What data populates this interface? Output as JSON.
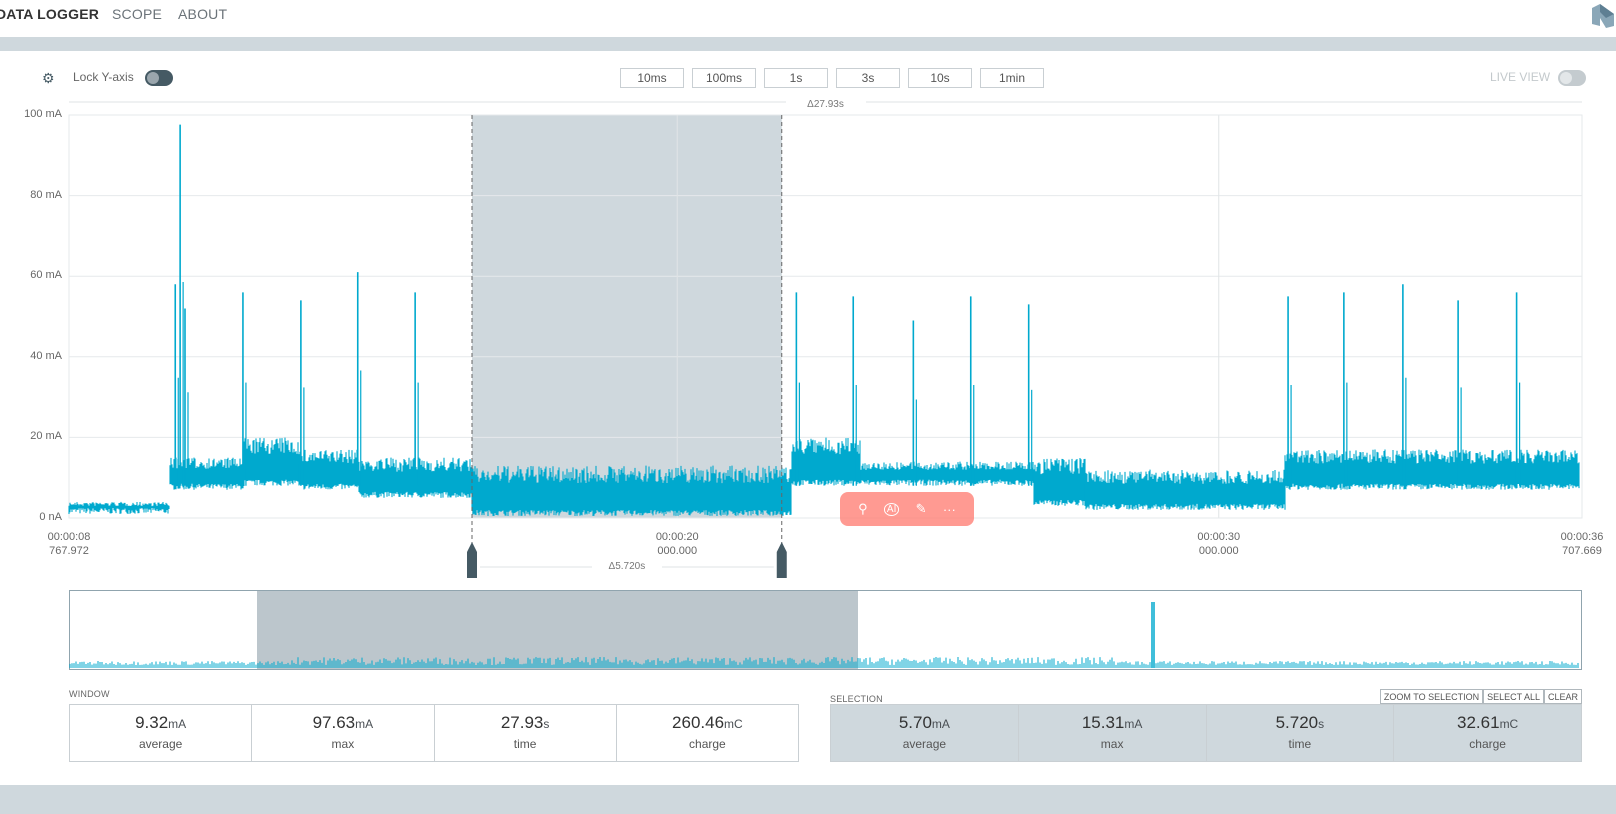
{
  "nav": {
    "items": [
      {
        "label": "DATA LOGGER",
        "active": true
      },
      {
        "label": "SCOPE"
      },
      {
        "label": "ABOUT"
      }
    ]
  },
  "controls": {
    "lock_y_label": "Lock Y-axis",
    "lock_y_on": false,
    "live_view_label": "LIVE VIEW",
    "live_view_on": false,
    "window_buttons": [
      "10ms",
      "100ms",
      "1s",
      "3s",
      "10s",
      "1min"
    ],
    "window_delta": "Δ27.93s",
    "selection_delta": "Δ5.720s"
  },
  "floating_toolbar": {
    "icons": [
      "search-icon",
      "ai-icon",
      "magic-pen-icon",
      "more-icon"
    ],
    "color": "#ff786e"
  },
  "chart_data": {
    "type": "line",
    "ylabel": "",
    "xlabel": "",
    "ylim": [
      0,
      100
    ],
    "yticks": [
      "0 nA",
      "20 mA",
      "40 mA",
      "60 mA",
      "80 mA",
      "100 mA"
    ],
    "ytick_values": [
      0,
      20,
      40,
      60,
      80,
      100
    ],
    "xlim": [
      8.767972,
      36.707669
    ],
    "xticks": [
      {
        "t": 8.767972,
        "l1": "00:00:08",
        "l2": "767.972"
      },
      {
        "t": 20,
        "l1": "00:00:20",
        "l2": "000.000"
      },
      {
        "t": 30,
        "l1": "00:00:30",
        "l2": "000.000"
      },
      {
        "t": 36.707669,
        "l1": "00:00:36",
        "l2": "707.669"
      }
    ],
    "grid": true,
    "color": "#00a9ce",
    "selection": [
      16.21,
      21.93
    ],
    "segments": [
      {
        "t0": 8.77,
        "t1": 10.63,
        "low": 1,
        "high": 4
      },
      {
        "t0": 10.63,
        "t1": 12.0,
        "low": 7,
        "high": 15
      },
      {
        "t0": 12.0,
        "t1": 13.01,
        "low": 8,
        "high": 20
      },
      {
        "t0": 13.01,
        "t1": 14.12,
        "low": 7,
        "high": 17
      },
      {
        "t0": 14.12,
        "t1": 16.21,
        "low": 5,
        "high": 15
      },
      {
        "t0": 16.21,
        "t1": 22.11,
        "low": 0.5,
        "high": 13
      },
      {
        "t0": 22.11,
        "t1": 23.39,
        "low": 8,
        "high": 20
      },
      {
        "t0": 23.39,
        "t1": 26.58,
        "low": 8,
        "high": 14
      },
      {
        "t0": 26.58,
        "t1": 27.53,
        "low": 3,
        "high": 15
      },
      {
        "t0": 27.53,
        "t1": 31.23,
        "low": 2,
        "high": 12
      },
      {
        "t0": 31.23,
        "t1": 36.67,
        "low": 7,
        "high": 17
      }
    ],
    "spikes": [
      [
        10.73,
        58
      ],
      [
        10.82,
        97.6
      ],
      [
        10.91,
        52
      ],
      [
        11.98,
        56
      ],
      [
        13.05,
        54
      ],
      [
        14.1,
        61
      ],
      [
        15.16,
        56
      ],
      [
        22.2,
        56
      ],
      [
        23.25,
        55
      ],
      [
        24.36,
        49
      ],
      [
        25.42,
        55
      ],
      [
        26.49,
        53
      ],
      [
        31.28,
        55
      ],
      [
        32.31,
        56
      ],
      [
        33.4,
        58
      ],
      [
        34.42,
        54
      ],
      [
        35.5,
        56
      ]
    ]
  },
  "window_stats": {
    "label": "WINDOW",
    "items": [
      {
        "value": "9.32",
        "unit": "mA",
        "label": "average"
      },
      {
        "value": "97.63",
        "unit": "mA",
        "label": "max"
      },
      {
        "value": "27.93",
        "unit": "s",
        "label": "time"
      },
      {
        "value": "260.46",
        "unit": "mC",
        "label": "charge"
      }
    ]
  },
  "selection_stats": {
    "label": "SELECTION",
    "buttons": [
      "ZOOM TO SELECTION",
      "SELECT ALL",
      "CLEAR"
    ],
    "items": [
      {
        "value": "5.70",
        "unit": "mA",
        "label": "average"
      },
      {
        "value": "15.31",
        "unit": "mA",
        "label": "max"
      },
      {
        "value": "5.720",
        "unit": "s",
        "label": "time"
      },
      {
        "value": "32.61",
        "unit": "mC",
        "label": "charge"
      }
    ]
  }
}
